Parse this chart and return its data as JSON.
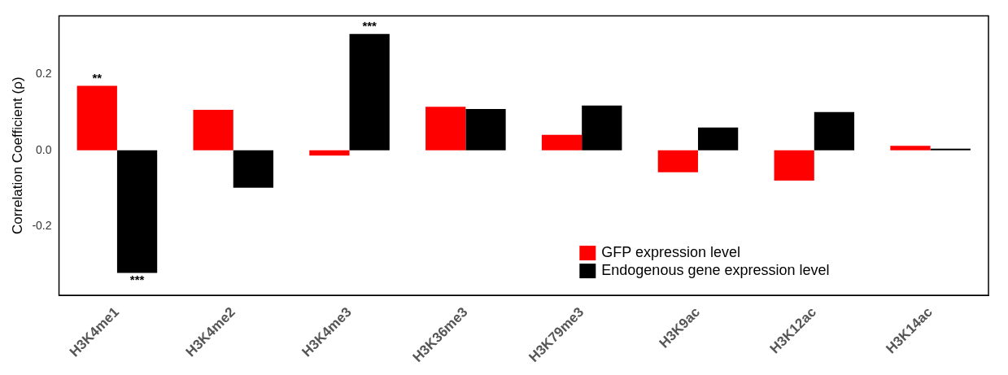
{
  "chart_data": {
    "type": "bar",
    "ylabel": "Correlation Coefficient (ρ)",
    "categories": [
      "H3K4me1",
      "H3K4me2",
      "H3K4me3",
      "H3K36me3",
      "H3K79me3",
      "H3K9ac",
      "H3K12ac",
      "H3K14ac"
    ],
    "series": [
      {
        "name": "GFP expression level",
        "color": "#ff0000",
        "values": [
          0.17,
          0.107,
          -0.014,
          0.115,
          0.041,
          -0.058,
          -0.08,
          0.012
        ]
      },
      {
        "name": "Endogenous gene expression level",
        "color": "#000000",
        "values": [
          -0.324,
          -0.099,
          0.307,
          0.109,
          0.118,
          0.06,
          0.101,
          0.004
        ]
      }
    ],
    "ylim": [
      -0.383,
      0.355
    ],
    "yticks": [
      {
        "value": -0.2,
        "label": "-0.2"
      },
      {
        "value": 0,
        "label": "0.0"
      },
      {
        "value": 0.2,
        "label": "0.2"
      }
    ],
    "grid": false,
    "legend": "bottom right",
    "annotations": [
      {
        "text": "**",
        "x": "H3K4me1",
        "y": 0.17
      },
      {
        "text": "***",
        "x": "H3K4me1",
        "y": -0.324
      },
      {
        "text": "***",
        "x": "H3K4me3",
        "y": 0.307
      }
    ]
  }
}
